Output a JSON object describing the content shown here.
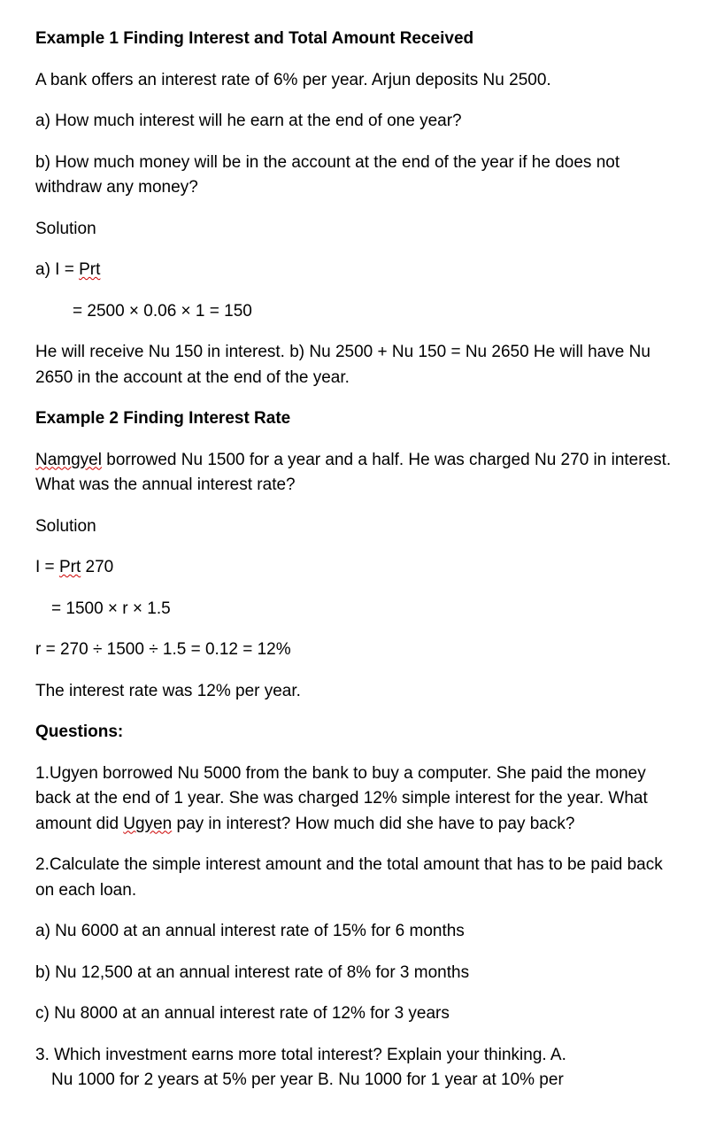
{
  "example1": {
    "title": "Example 1 Finding Interest and Total Amount Received",
    "intro": "A bank offers an interest rate of 6% per year. Arjun deposits Nu 2500.",
    "qa": " a) How much interest will he earn at the end of one year?",
    "qb": " b) How much money will be in the account at the end of the year if he does not withdraw any money?",
    "solution_label": "Solution",
    "line_a_pre": "a) I = ",
    "line_a_spell": "Prt",
    "line_calc": "= 2500 × 0.06 × 1 = 150",
    "answer": "He will receive Nu 150 in interest. b) Nu 2500 + Nu 150 = Nu 2650 He will have Nu 2650 in the account at the end of the year."
  },
  "example2": {
    "title": "Example 2 Finding Interest Rate",
    "intro_spell": "Namgyel",
    "intro_rest": " borrowed Nu 1500 for a year and a half. He was charged Nu 270 in interest. What was the annual interest rate?",
    "solution_label": "Solution",
    "line1_pre": "I = ",
    "line1_spell": "Prt",
    "line1_post": " 270",
    "line2": "= 1500 × r × 1.5",
    "line3": " r = 270 ÷ 1500 ÷ 1.5 = 0.12 = 12%",
    "answer": "The interest rate was 12% per year."
  },
  "questions": {
    "title": "Questions:",
    "q1_pre": "1.Ugyen borrowed Nu 5000 from the bank to buy a computer. She paid the money back at the end of 1 year. She was charged 12% simple interest for the year. What amount did ",
    "q1_spell": "Ugyen",
    "q1_post": " pay in interest? How much did she have to pay back?",
    "q2": "2.Calculate the simple interest amount and the total amount that has to be paid back on each loan.",
    "q2a": "a) Nu 6000 at an annual interest rate of 15% for 6 months",
    "q2b": "b) Nu 12,500 at an annual interest rate of 8% for 3 months",
    "q2c": "c) Nu 8000 at an annual interest rate of 12% for 3 years",
    "q3_line1": "3. Which investment earns more total interest? Explain your thinking. A.",
    "q3_line2": "Nu 1000 for 2 years at 5% per year B. Nu 1000 for 1 year at 10% per"
  }
}
